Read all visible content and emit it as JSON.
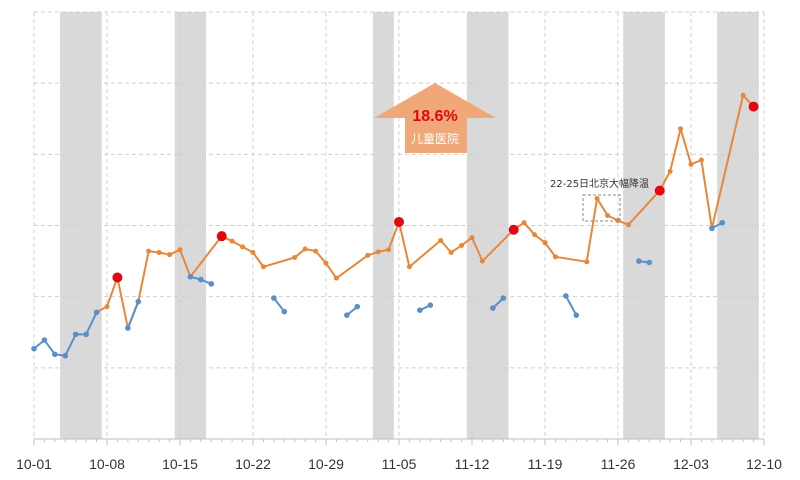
{
  "chart_data": {
    "type": "line",
    "title": "",
    "xlabel": "",
    "ylabel": "",
    "x_ticks": [
      "10-01",
      "10-08",
      "10-15",
      "10-22",
      "10-29",
      "11-05",
      "11-12",
      "11-19",
      "11-26",
      "12-03",
      "12-10"
    ],
    "x_range": [
      "10-01",
      "12-10"
    ],
    "y_range": [
      0,
      6
    ],
    "grid": true,
    "shaded_ranges": [
      [
        "10-04",
        "10-07"
      ],
      [
        "10-15",
        "10-17"
      ],
      [
        "11-03",
        "11-04"
      ],
      [
        "11-12",
        "11-15"
      ],
      [
        "11-27",
        "11-30"
      ],
      [
        "12-06",
        "12-09"
      ]
    ],
    "series": [
      {
        "type": "weekday",
        "color": "#E8873A",
        "points": [
          [
            "10-07",
            1.78
          ],
          [
            "10-08",
            1.86
          ],
          [
            "10-09",
            2.27
          ],
          [
            "10-10",
            1.56
          ],
          [
            "10-11",
            1.93
          ],
          [
            "10-12",
            2.64
          ],
          [
            "10-13",
            2.62
          ],
          [
            "10-14",
            2.59
          ],
          [
            "10-15",
            2.66
          ],
          [
            "10-16",
            2.28
          ],
          [
            "10-19",
            2.85
          ],
          [
            "10-20",
            2.78
          ],
          [
            "10-21",
            2.7
          ],
          [
            "10-22",
            2.62
          ],
          [
            "10-23",
            2.42
          ],
          [
            "10-26",
            2.55
          ],
          [
            "10-27",
            2.67
          ],
          [
            "10-28",
            2.64
          ],
          [
            "10-29",
            2.47
          ],
          [
            "10-30",
            2.26
          ],
          [
            "11-02",
            2.58
          ],
          [
            "11-03",
            2.63
          ],
          [
            "11-04",
            2.66
          ],
          [
            "11-05",
            3.05
          ],
          [
            "11-06",
            2.42
          ],
          [
            "11-09",
            2.79
          ],
          [
            "11-10",
            2.62
          ],
          [
            "11-11",
            2.72
          ],
          [
            "11-12",
            2.83
          ],
          [
            "11-13",
            2.5
          ],
          [
            "11-16",
            2.94
          ],
          [
            "11-17",
            3.04
          ],
          [
            "11-18",
            2.87
          ],
          [
            "11-19",
            2.76
          ],
          [
            "11-20",
            2.56
          ],
          [
            "11-23",
            2.49
          ],
          [
            "11-24",
            3.38
          ],
          [
            "11-25",
            3.14
          ],
          [
            "11-26",
            3.07
          ],
          [
            "11-27",
            3.01
          ],
          [
            "11-30",
            3.49
          ],
          [
            "12-01",
            3.76
          ],
          [
            "12-02",
            4.36
          ],
          [
            "12-03",
            3.86
          ],
          [
            "12-04",
            3.92
          ],
          [
            "12-05",
            2.96
          ],
          [
            "12-08",
            4.83
          ],
          [
            "12-09",
            4.67
          ]
        ]
      },
      {
        "type": "weekend",
        "color": "#5B8FC7",
        "segments": [
          [
            [
              "10-01",
              1.27
            ],
            [
              "10-02",
              1.39
            ],
            [
              "10-03",
              1.19
            ],
            [
              "10-04",
              1.17
            ],
            [
              "10-05",
              1.47
            ],
            [
              "10-06",
              1.47
            ],
            [
              "10-07",
              1.78
            ]
          ],
          [
            [
              "10-10",
              1.56
            ],
            [
              "10-11",
              1.93
            ]
          ],
          [
            [
              "10-16",
              2.28
            ],
            [
              "10-17",
              2.24
            ],
            [
              "10-18",
              2.18
            ]
          ],
          [
            [
              "10-24",
              1.98
            ],
            [
              "10-25",
              1.79
            ]
          ],
          [
            [
              "10-31",
              1.74
            ],
            [
              "11-01",
              1.86
            ]
          ],
          [
            [
              "11-07",
              1.81
            ],
            [
              "11-08",
              1.88
            ]
          ],
          [
            [
              "11-14",
              1.84
            ],
            [
              "11-15",
              1.98
            ]
          ],
          [
            [
              "11-21",
              2.01
            ],
            [
              "11-22",
              1.74
            ]
          ],
          [
            [
              "11-28",
              2.5
            ],
            [
              "11-29",
              2.48
            ]
          ],
          [
            [
              "12-05",
              2.96
            ],
            [
              "12-06",
              3.04
            ]
          ]
        ]
      }
    ],
    "highlighted_points": [
      [
        "10-09",
        2.27
      ],
      [
        "10-19",
        2.85
      ],
      [
        "11-05",
        3.05
      ],
      [
        "11-16",
        2.94
      ],
      [
        "11-30",
        3.49
      ],
      [
        "12-09",
        4.67
      ]
    ],
    "annotations": {
      "callout_percent": "18.6%",
      "callout_label": "儿童医院",
      "note": "22-25日北京大幅降温"
    },
    "colors": {
      "weekday_line": "#E8873A",
      "weekend_line": "#5B8FC7",
      "highlight_dot": "#E30613",
      "shade": "#D9D9D9",
      "callout_arrow": "#F0A878",
      "callout_pct_text": "#E30613",
      "callout_label_text": "#FFFFFF"
    }
  }
}
